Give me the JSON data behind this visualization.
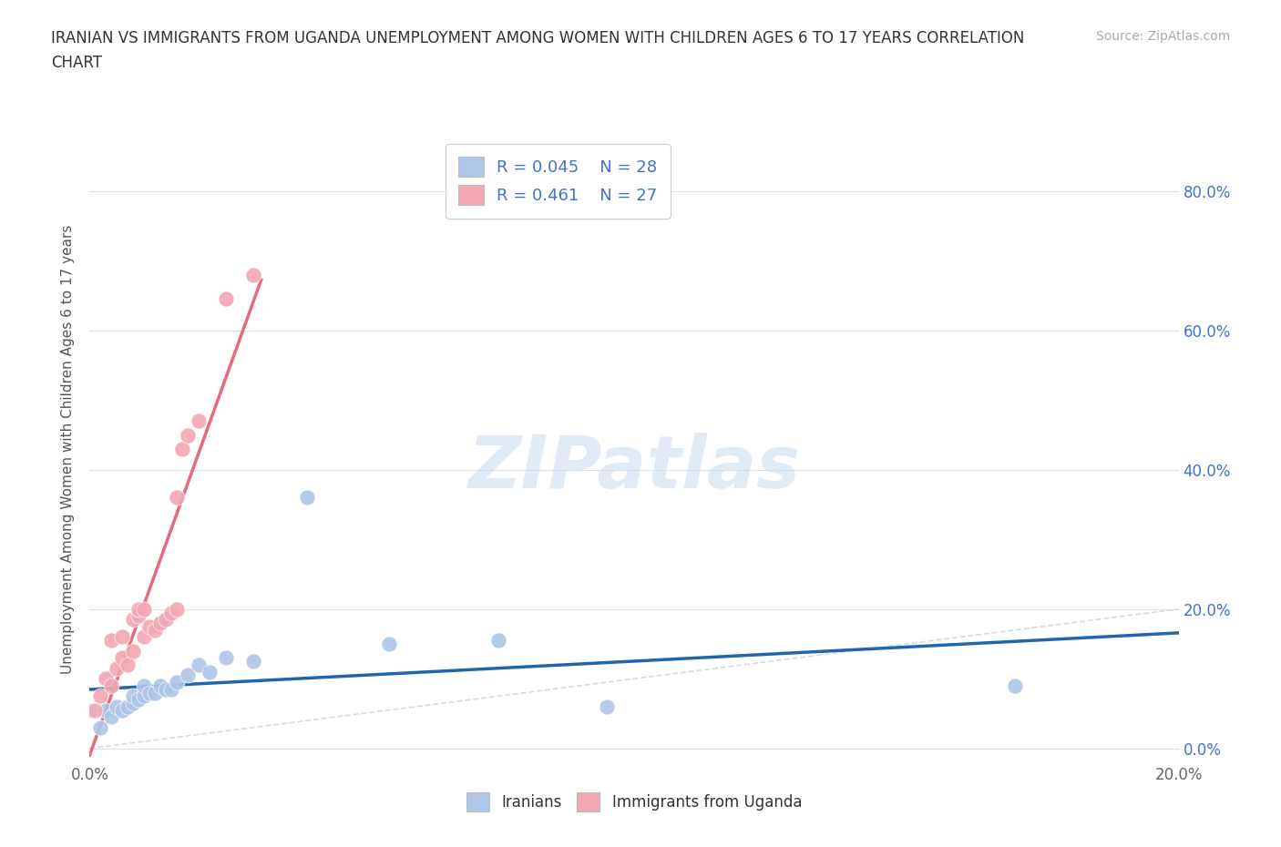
{
  "title_line1": "IRANIAN VS IMMIGRANTS FROM UGANDA UNEMPLOYMENT AMONG WOMEN WITH CHILDREN AGES 6 TO 17 YEARS CORRELATION",
  "title_line2": "CHART",
  "source": "Source: ZipAtlas.com",
  "ylabel": "Unemployment Among Women with Children Ages 6 to 17 years",
  "xlim": [
    0.0,
    0.2
  ],
  "ylim": [
    -0.02,
    0.88
  ],
  "xtick_vals": [
    0.0,
    0.2
  ],
  "xtick_labels": [
    "0.0%",
    "20.0%"
  ],
  "ytick_vals": [
    0.0,
    0.2,
    0.4,
    0.6,
    0.8
  ],
  "ytick_labels_right": [
    "0.0%",
    "20.0%",
    "40.0%",
    "60.0%",
    "80.0%"
  ],
  "color_iranian": "#aec6e8",
  "color_uganda": "#f4a7b4",
  "color_iranian_line": "#2166ac",
  "color_uganda_line": "#e8697d",
  "color_diag": "#cccccc",
  "R_iranian": 0.045,
  "N_iranian": 28,
  "R_uganda": 0.461,
  "N_uganda": 27,
  "legend_label_iranian": "Iranians",
  "legend_label_uganda": "Immigrants from Uganda",
  "watermark": "ZIPatlas",
  "iranians_x": [
    0.0,
    0.002,
    0.003,
    0.004,
    0.005,
    0.006,
    0.007,
    0.008,
    0.008,
    0.009,
    0.01,
    0.01,
    0.011,
    0.012,
    0.013,
    0.014,
    0.015,
    0.016,
    0.018,
    0.02,
    0.022,
    0.025,
    0.03,
    0.04,
    0.055,
    0.075,
    0.095,
    0.17
  ],
  "iranians_y": [
    0.055,
    0.03,
    0.055,
    0.045,
    0.06,
    0.055,
    0.06,
    0.065,
    0.075,
    0.07,
    0.075,
    0.09,
    0.08,
    0.08,
    0.09,
    0.085,
    0.085,
    0.095,
    0.105,
    0.12,
    0.11,
    0.13,
    0.125,
    0.36,
    0.15,
    0.155,
    0.06,
    0.09
  ],
  "uganda_x": [
    0.001,
    0.002,
    0.003,
    0.004,
    0.004,
    0.005,
    0.006,
    0.006,
    0.007,
    0.008,
    0.008,
    0.009,
    0.009,
    0.01,
    0.01,
    0.011,
    0.012,
    0.013,
    0.014,
    0.015,
    0.016,
    0.016,
    0.017,
    0.018,
    0.02,
    0.025,
    0.03
  ],
  "uganda_y": [
    0.055,
    0.075,
    0.1,
    0.09,
    0.155,
    0.115,
    0.13,
    0.16,
    0.12,
    0.14,
    0.185,
    0.19,
    0.2,
    0.2,
    0.16,
    0.175,
    0.17,
    0.18,
    0.185,
    0.195,
    0.2,
    0.36,
    0.43,
    0.45,
    0.47,
    0.645,
    0.68
  ],
  "background_color": "#ffffff",
  "plot_bg_color": "#ffffff",
  "grid_color": "#e0e0e0",
  "tick_color_right": "#4472c4",
  "tick_color_bottom": "#666666"
}
